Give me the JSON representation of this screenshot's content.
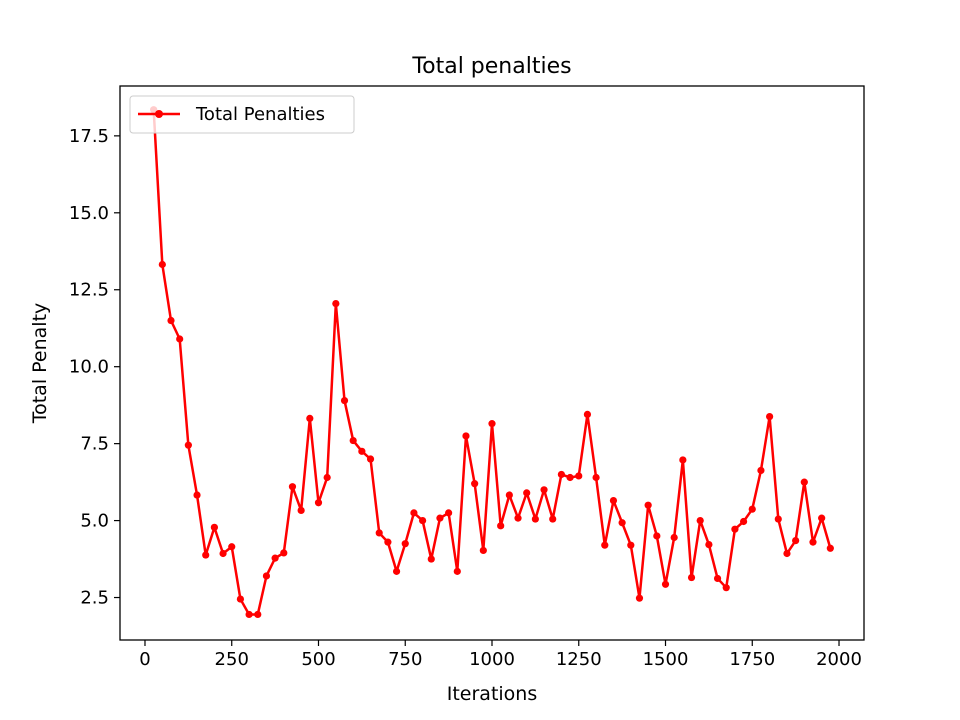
{
  "chart_data": {
    "type": "line",
    "title": "Total penalties",
    "xlabel": "Iterations",
    "ylabel": "Total Penalty",
    "xlim": [
      -72,
      2072
    ],
    "ylim": [
      1.12,
      19.12
    ],
    "xticks": [
      0,
      250,
      500,
      750,
      1000,
      1250,
      1500,
      1750,
      2000
    ],
    "xtick_labels": [
      "0",
      "250",
      "500",
      "750",
      "1000",
      "1250",
      "1500",
      "1750",
      "2000"
    ],
    "yticks": [
      2.5,
      5.0,
      7.5,
      10.0,
      12.5,
      15.0,
      17.5
    ],
    "ytick_labels": [
      "2.5",
      "5.0",
      "7.5",
      "10.0",
      "12.5",
      "15.0",
      "17.5"
    ],
    "grid": false,
    "legend": {
      "position": "top-left",
      "entries": [
        "Total Penalties"
      ]
    },
    "series": [
      {
        "name": "Total Penalties",
        "color": "#ff0000",
        "marker": "circle",
        "x": [
          25,
          50,
          75,
          100,
          125,
          150,
          175,
          200,
          225,
          250,
          275,
          300,
          325,
          350,
          375,
          400,
          425,
          450,
          475,
          500,
          525,
          550,
          575,
          600,
          625,
          650,
          675,
          700,
          725,
          750,
          775,
          800,
          825,
          850,
          875,
          900,
          925,
          950,
          975,
          1000,
          1025,
          1050,
          1075,
          1100,
          1125,
          1150,
          1175,
          1200,
          1225,
          1250,
          1275,
          1300,
          1325,
          1350,
          1375,
          1400,
          1425,
          1450,
          1475,
          1500,
          1525,
          1550,
          1575,
          1600,
          1625,
          1650,
          1675,
          1700,
          1725,
          1750,
          1775,
          1800,
          1825,
          1850,
          1875,
          1900,
          1925,
          1950,
          1975
        ],
        "y": [
          18.35,
          13.32,
          11.5,
          10.9,
          7.45,
          5.83,
          3.88,
          4.78,
          3.93,
          4.15,
          2.45,
          1.95,
          1.95,
          3.2,
          3.78,
          3.95,
          6.1,
          5.33,
          8.32,
          5.58,
          6.4,
          12.05,
          8.9,
          7.6,
          7.25,
          7.0,
          4.6,
          4.3,
          3.35,
          4.25,
          5.25,
          5.0,
          3.75,
          5.08,
          5.25,
          3.35,
          7.75,
          6.2,
          4.03,
          8.15,
          4.83,
          5.83,
          5.08,
          5.9,
          5.05,
          6.0,
          5.05,
          6.5,
          6.4,
          6.45,
          8.45,
          6.4,
          4.2,
          5.65,
          4.93,
          4.2,
          2.48,
          5.5,
          4.5,
          2.93,
          4.45,
          6.97,
          3.15,
          5.0,
          4.22,
          3.12,
          2.82,
          4.72,
          4.97,
          5.37,
          6.63,
          8.38,
          5.05,
          3.93,
          4.35,
          6.25,
          4.3,
          5.08,
          4.1
        ]
      }
    ]
  }
}
